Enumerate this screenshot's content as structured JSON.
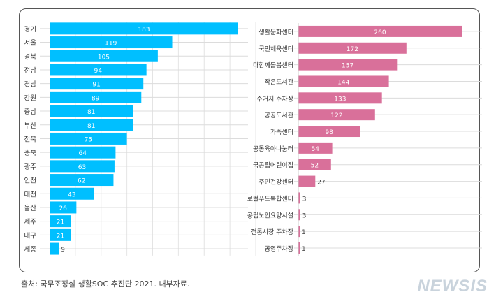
{
  "chart_data": [
    {
      "type": "bar",
      "orientation": "horizontal",
      "color": "#00bfff",
      "xlim": [
        0,
        200
      ],
      "grid": true,
      "categories": [
        "경기",
        "서울",
        "경북",
        "전남",
        "경남",
        "강원",
        "충남",
        "부산",
        "전북",
        "충북",
        "광주",
        "인천",
        "대전",
        "울산",
        "제주",
        "대구",
        "세종"
      ],
      "values": [
        183,
        119,
        105,
        94,
        91,
        89,
        81,
        81,
        75,
        64,
        63,
        62,
        43,
        26,
        21,
        21,
        9
      ]
    },
    {
      "type": "bar",
      "orientation": "horizontal",
      "color": "#d9709a",
      "xlim": [
        0,
        260
      ],
      "grid": true,
      "categories": [
        "생활문화센터",
        "국민체육센터",
        "다함께돌봄센터",
        "작은도서관",
        "주거지 주차장",
        "공공도서관",
        "가족센터",
        "공동육아나눔터",
        "국공립어린이집",
        "주민건강센터",
        "로컬푸드복합센터",
        "공립노인요양시설",
        "전통시장 주차장",
        "공영주차장"
      ],
      "values": [
        260,
        172,
        157,
        144,
        133,
        122,
        98,
        54,
        52,
        27,
        3,
        3,
        1,
        1
      ]
    }
  ],
  "source": "출처: 국무조정실 생활SOC 추진단 2021. 내부자료.",
  "logo": "NEWSIS"
}
